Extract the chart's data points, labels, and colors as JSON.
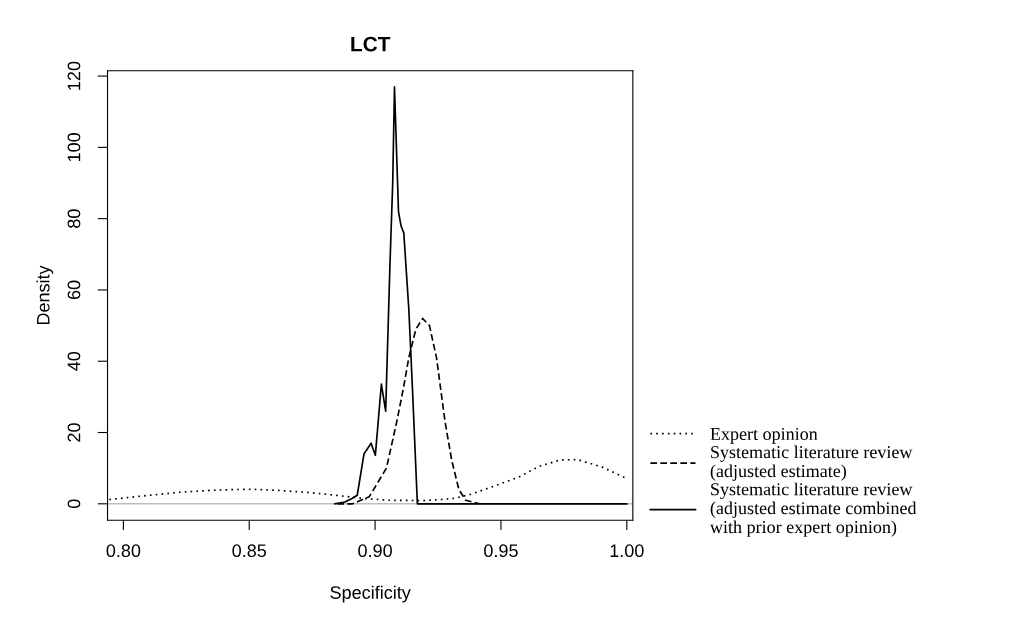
{
  "chart_data": {
    "type": "line",
    "title": "LCT",
    "xlabel": "Specificity",
    "ylabel": "Density",
    "xlim": [
      0.7937,
      1.0024
    ],
    "ylim": [
      -4.6,
      121.5
    ],
    "xticks": [
      {
        "value": 0.8,
        "label": "0.80"
      },
      {
        "value": 0.85,
        "label": "0.85"
      },
      {
        "value": 0.9,
        "label": "0.90"
      },
      {
        "value": 0.95,
        "label": "0.95"
      },
      {
        "value": 1.0,
        "label": "1.00"
      }
    ],
    "yticks": [
      0,
      20,
      40,
      60,
      80,
      100,
      120
    ],
    "grid": false,
    "legend": "right",
    "marker": "none",
    "ref_lines": [
      {
        "axis": "y",
        "value": 0,
        "color": "#bebebe",
        "line_style": "solid"
      }
    ],
    "series": [
      {
        "name": "Expert opinion",
        "color": "#000000",
        "line_style": "dotted",
        "x": [
          0.7944,
          0.8077,
          0.8216,
          0.8355,
          0.8495,
          0.8606,
          0.8732,
          0.8843,
          0.8955,
          0.9052,
          0.9192,
          0.9303,
          0.9373,
          0.947,
          0.9568,
          0.9652,
          0.9735,
          0.9805,
          0.9902,
          1.0
        ],
        "values": [
          1.2,
          2.2,
          3.2,
          3.8,
          4.1,
          3.8,
          3.2,
          2.4,
          1.5,
          1.0,
          0.9,
          1.4,
          2.5,
          4.9,
          7.4,
          10.5,
          12.3,
          12.4,
          10.3,
          7.1
        ]
      },
      {
        "name": "Systematic literature review\n(adjusted estimate)",
        "color": "#000000",
        "line_style": "dashed",
        "x": [
          0.885,
          0.891,
          0.8977,
          0.9045,
          0.9086,
          0.9114,
          0.9134,
          0.9162,
          0.9189,
          0.9216,
          0.9244,
          0.9278,
          0.9305,
          0.9333,
          0.936,
          0.9415
        ],
        "values": [
          0,
          0,
          2,
          10,
          23,
          33,
          41,
          49,
          52,
          50,
          41,
          23,
          12,
          4,
          1,
          0
        ]
      },
      {
        "name": "Systematic literature review\n(adjusted estimate combined\nwith prior expert opinion)",
        "color": "#000000",
        "line_style": "solid",
        "x": [
          0.884,
          0.888,
          0.8908,
          0.8929,
          0.8956,
          0.8984,
          0.9001,
          0.9025,
          0.9042,
          0.9059,
          0.907,
          0.9077,
          0.9093,
          0.9103,
          0.9114,
          0.9134,
          0.9148,
          0.9168,
          1.0
        ],
        "values": [
          0,
          0.5,
          1.5,
          2.4,
          14,
          17,
          13.6,
          33.6,
          26,
          67,
          90,
          117,
          82,
          78,
          76,
          54.6,
          33,
          0,
          0
        ]
      }
    ]
  }
}
